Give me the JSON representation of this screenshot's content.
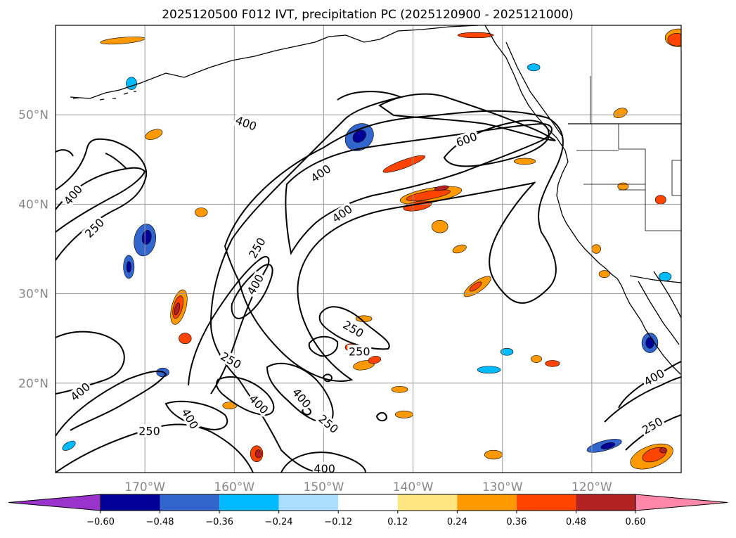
{
  "chart_data": {
    "type": "map-contour",
    "title": "2025120500 F012 IVT, precipitation PC (2025120900 - 2025121000)",
    "map_extent": {
      "lon": [
        -180,
        -110
      ],
      "lat": [
        10,
        60
      ]
    },
    "lon_ticks": [
      {
        "value": -170,
        "label": "170°W"
      },
      {
        "value": -160,
        "label": "160°W"
      },
      {
        "value": -150,
        "label": "150°W"
      },
      {
        "value": -140,
        "label": "140°W"
      },
      {
        "value": -130,
        "label": "130°W"
      },
      {
        "value": -120,
        "label": "120°W"
      }
    ],
    "lat_ticks": [
      {
        "value": 20,
        "label": "20°N"
      },
      {
        "value": 30,
        "label": "30°N"
      },
      {
        "value": 40,
        "label": "40°N"
      },
      {
        "value": 50,
        "label": "50°N"
      }
    ],
    "grid": true,
    "ivt_contour_levels": [
      250,
      400,
      600
    ],
    "contour_labels": [
      {
        "text": "400",
        "lon": -178.0,
        "lat": 41.0,
        "rot": -50
      },
      {
        "text": "250",
        "lon": -175.6,
        "lat": 37.3,
        "rot": -45
      },
      {
        "text": "400",
        "lon": -158.7,
        "lat": 49.0,
        "rot": 20
      },
      {
        "text": "600",
        "lon": -134.0,
        "lat": 47.2,
        "rot": -20
      },
      {
        "text": "400",
        "lon": -150.3,
        "lat": 43.4,
        "rot": -35
      },
      {
        "text": "400",
        "lon": -147.9,
        "lat": 38.9,
        "rot": -35
      },
      {
        "text": "250",
        "lon": -157.4,
        "lat": 35.1,
        "rot": -60
      },
      {
        "text": "400",
        "lon": -157.6,
        "lat": 31.0,
        "rot": -60
      },
      {
        "text": "250",
        "lon": -146.7,
        "lat": 26.0,
        "rot": 30
      },
      {
        "text": "250",
        "lon": -146.0,
        "lat": 23.5,
        "rot": 0
      },
      {
        "text": "250",
        "lon": -160.4,
        "lat": 22.5,
        "rot": 30
      },
      {
        "text": "400",
        "lon": -157.3,
        "lat": 17.6,
        "rot": 45
      },
      {
        "text": "400",
        "lon": -152.5,
        "lat": 18.3,
        "rot": 50
      },
      {
        "text": "250",
        "lon": -149.5,
        "lat": 15.4,
        "rot": 40
      },
      {
        "text": "400",
        "lon": -165.0,
        "lat": 16.0,
        "rot": 60
      },
      {
        "text": "400",
        "lon": -177.2,
        "lat": 19.0,
        "rot": -40
      },
      {
        "text": "250",
        "lon": -169.5,
        "lat": 14.6,
        "rot": 0
      },
      {
        "text": "400",
        "lon": -149.9,
        "lat": 10.4,
        "rot": 0
      },
      {
        "text": "400",
        "lon": -113.0,
        "lat": 20.6,
        "rot": -30
      },
      {
        "text": "250",
        "lon": -113.2,
        "lat": 15.2,
        "rot": -30
      }
    ],
    "colorbar": {
      "ticks": [
        "−0.60",
        "−0.48",
        "−0.36",
        "−0.24",
        "−0.12",
        "0.12",
        "0.24",
        "0.36",
        "0.48",
        "0.60"
      ],
      "colors": [
        "#9933cc",
        "#000099",
        "#3366cc",
        "#00bbff",
        "#aaddff",
        "#ffffff",
        "#ffe680",
        "#ff9900",
        "#ff4400",
        "#b22222",
        "#ff88aa"
      ],
      "extend": "both"
    },
    "pc_regions": [
      {
        "lon": -146.0,
        "lat": 47.5,
        "rx": 1.7,
        "ry": 1.4,
        "rot": -40,
        "level": -0.36
      },
      {
        "lon": -146.0,
        "lat": 47.6,
        "rx": 0.8,
        "ry": 0.6,
        "rot": -40,
        "level": -0.48
      },
      {
        "lon": -170.0,
        "lat": 36.0,
        "rx": 1.2,
        "ry": 1.8,
        "rot": 10,
        "level": -0.36
      },
      {
        "lon": -169.8,
        "lat": 36.3,
        "rx": 0.5,
        "ry": 0.8,
        "rot": 10,
        "level": -0.48
      },
      {
        "lon": -171.8,
        "lat": 33.0,
        "rx": 0.6,
        "ry": 1.3,
        "rot": 0,
        "level": -0.36
      },
      {
        "lon": -171.8,
        "lat": 33.0,
        "rx": 0.25,
        "ry": 0.6,
        "rot": 0,
        "level": -0.48
      },
      {
        "lon": -113.5,
        "lat": 24.5,
        "rx": 0.9,
        "ry": 1.1,
        "rot": 0,
        "level": -0.36
      },
      {
        "lon": -113.5,
        "lat": 24.5,
        "rx": 0.45,
        "ry": 0.6,
        "rot": 0,
        "level": -0.48
      },
      {
        "lon": -111.8,
        "lat": 31.9,
        "rx": 0.7,
        "ry": 0.5,
        "rot": 0,
        "level": -0.24
      },
      {
        "lon": -118.6,
        "lat": 13.0,
        "rx": 2.0,
        "ry": 0.55,
        "rot": -15,
        "level": -0.36
      },
      {
        "lon": -118.2,
        "lat": 13.0,
        "rx": 0.8,
        "ry": 0.3,
        "rot": -15,
        "level": -0.48
      },
      {
        "lon": -131.5,
        "lat": 21.5,
        "rx": 1.3,
        "ry": 0.4,
        "rot": 0,
        "level": -0.24
      },
      {
        "lon": -129.5,
        "lat": 23.5,
        "rx": 0.7,
        "ry": 0.4,
        "rot": 0,
        "level": -0.24
      },
      {
        "lon": -168.0,
        "lat": 21.2,
        "rx": 0.7,
        "ry": 0.5,
        "rot": 0,
        "level": -0.36
      },
      {
        "lon": -178.5,
        "lat": 13.0,
        "rx": 0.8,
        "ry": 0.4,
        "rot": -30,
        "level": -0.24
      },
      {
        "lon": -171.5,
        "lat": 53.5,
        "rx": 0.6,
        "ry": 0.7,
        "rot": 0,
        "level": -0.24
      },
      {
        "lon": -126.5,
        "lat": 55.3,
        "rx": 0.7,
        "ry": 0.4,
        "rot": 0,
        "level": -0.24
      },
      {
        "lon": -138.0,
        "lat": 41.0,
        "rx": 3.5,
        "ry": 0.8,
        "rot": -10,
        "level": 0.24
      },
      {
        "lon": -138.3,
        "lat": 41.0,
        "rx": 2.5,
        "ry": 0.45,
        "rot": -10,
        "level": 0.36
      },
      {
        "lon": -136.8,
        "lat": 41.8,
        "rx": 0.8,
        "ry": 0.25,
        "rot": -10,
        "level": 0.48
      },
      {
        "lon": -139.5,
        "lat": 39.8,
        "rx": 1.6,
        "ry": 0.5,
        "rot": -10,
        "level": 0.36
      },
      {
        "lon": -141.0,
        "lat": 44.5,
        "rx": 2.5,
        "ry": 0.45,
        "rot": -20,
        "level": 0.36
      },
      {
        "lon": -166.2,
        "lat": 28.5,
        "rx": 0.8,
        "ry": 2.0,
        "rot": 15,
        "level": 0.24
      },
      {
        "lon": -166.3,
        "lat": 28.5,
        "rx": 0.5,
        "ry": 1.3,
        "rot": 15,
        "level": 0.36
      },
      {
        "lon": -166.4,
        "lat": 28.3,
        "rx": 0.25,
        "ry": 0.7,
        "rot": 15,
        "level": 0.48
      },
      {
        "lon": -165.5,
        "lat": 25.0,
        "rx": 0.7,
        "ry": 0.6,
        "rot": 0,
        "level": 0.36
      },
      {
        "lon": -113.3,
        "lat": 11.8,
        "rx": 2.5,
        "ry": 1.2,
        "rot": -20,
        "level": 0.24
      },
      {
        "lon": -113.0,
        "lat": 12.0,
        "rx": 1.4,
        "ry": 0.7,
        "rot": -20,
        "level": 0.36
      },
      {
        "lon": -112.0,
        "lat": 12.5,
        "rx": 0.4,
        "ry": 0.3,
        "rot": 0,
        "level": 0.48
      },
      {
        "lon": -110.3,
        "lat": 58.6,
        "rx": 1.5,
        "ry": 1.0,
        "rot": 0,
        "level": 0.24
      },
      {
        "lon": -110.5,
        "lat": 58.4,
        "rx": 1.0,
        "ry": 0.7,
        "rot": 0,
        "level": 0.36
      },
      {
        "lon": -172.5,
        "lat": 58.3,
        "rx": 2.5,
        "ry": 0.35,
        "rot": -5,
        "level": 0.24
      },
      {
        "lon": -133.0,
        "lat": 58.9,
        "rx": 2.0,
        "ry": 0.3,
        "rot": 0,
        "level": 0.36
      },
      {
        "lon": -157.5,
        "lat": 12.1,
        "rx": 0.7,
        "ry": 0.9,
        "rot": 0,
        "level": 0.36
      },
      {
        "lon": -157.3,
        "lat": 12.1,
        "rx": 0.35,
        "ry": 0.45,
        "rot": 0,
        "level": 0.48
      },
      {
        "lon": -145.5,
        "lat": 22.0,
        "rx": 1.2,
        "ry": 0.5,
        "rot": -10,
        "level": 0.24
      },
      {
        "lon": -144.3,
        "lat": 22.6,
        "rx": 0.7,
        "ry": 0.4,
        "rot": -10,
        "level": 0.36
      },
      {
        "lon": -145.5,
        "lat": 27.2,
        "rx": 0.9,
        "ry": 0.35,
        "rot": 0,
        "level": 0.24
      },
      {
        "lon": -147.0,
        "lat": 24.0,
        "rx": 0.6,
        "ry": 0.4,
        "rot": 0,
        "level": 0.36
      },
      {
        "lon": -132.8,
        "lat": 30.8,
        "rx": 1.8,
        "ry": 0.6,
        "rot": -35,
        "level": 0.24
      },
      {
        "lon": -133.0,
        "lat": 30.8,
        "rx": 0.8,
        "ry": 0.3,
        "rot": -35,
        "level": 0.36
      },
      {
        "lon": -137.0,
        "lat": 37.5,
        "rx": 0.9,
        "ry": 0.7,
        "rot": 0,
        "level": 0.24
      },
      {
        "lon": -134.8,
        "lat": 35.0,
        "rx": 0.8,
        "ry": 0.4,
        "rot": -20,
        "level": 0.24
      },
      {
        "lon": -124.4,
        "lat": 22.2,
        "rx": 0.8,
        "ry": 0.35,
        "rot": 0,
        "level": 0.36
      },
      {
        "lon": -126.2,
        "lat": 22.7,
        "rx": 0.6,
        "ry": 0.4,
        "rot": 0,
        "level": 0.24
      },
      {
        "lon": -119.5,
        "lat": 35.0,
        "rx": 0.5,
        "ry": 0.5,
        "rot": 0,
        "level": 0.24
      },
      {
        "lon": -116.5,
        "lat": 42.0,
        "rx": 0.6,
        "ry": 0.4,
        "rot": 0,
        "level": 0.24
      },
      {
        "lon": -112.3,
        "lat": 40.5,
        "rx": 0.6,
        "ry": 0.5,
        "rot": 0,
        "level": 0.36
      },
      {
        "lon": -116.8,
        "lat": 50.2,
        "rx": 0.8,
        "ry": 0.5,
        "rot": -20,
        "level": 0.24
      },
      {
        "lon": -118.6,
        "lat": 32.2,
        "rx": 0.6,
        "ry": 0.4,
        "rot": 0,
        "level": 0.24
      },
      {
        "lon": -169.0,
        "lat": 47.8,
        "rx": 1.0,
        "ry": 0.5,
        "rot": -20,
        "level": 0.24
      },
      {
        "lon": -163.7,
        "lat": 39.1,
        "rx": 0.7,
        "ry": 0.5,
        "rot": 0,
        "level": 0.24
      },
      {
        "lon": -160.5,
        "lat": 17.5,
        "rx": 0.8,
        "ry": 0.4,
        "rot": 0,
        "level": 0.24
      },
      {
        "lon": -131.0,
        "lat": 12.0,
        "rx": 1.0,
        "ry": 0.5,
        "rot": 0,
        "level": 0.24
      },
      {
        "lon": -141.0,
        "lat": 16.5,
        "rx": 1.0,
        "ry": 0.4,
        "rot": 0,
        "level": 0.24
      },
      {
        "lon": -127.5,
        "lat": 44.8,
        "rx": 1.2,
        "ry": 0.35,
        "rot": 0,
        "level": 0.24
      },
      {
        "lon": -141.5,
        "lat": 19.3,
        "rx": 0.9,
        "ry": 0.35,
        "rot": 0,
        "level": 0.24
      }
    ]
  }
}
